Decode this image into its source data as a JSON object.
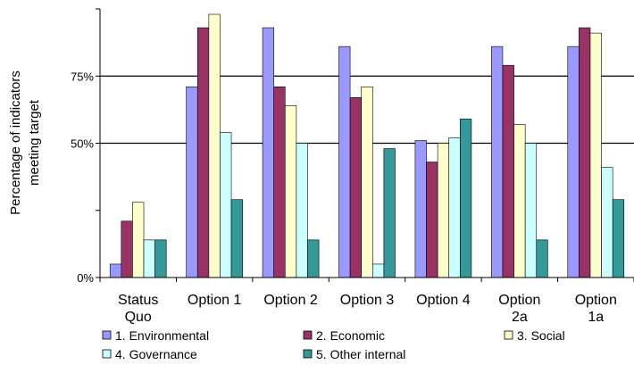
{
  "chart_data": {
    "type": "bar",
    "title": "",
    "xlabel": "",
    "ylabel_lines": [
      "Percentage of indicators",
      "meeting target"
    ],
    "ylim": [
      0,
      100
    ],
    "yticks": [
      {
        "value": 0,
        "label": "0%"
      },
      {
        "value": 50,
        "label": "50%"
      },
      {
        "value": 75,
        "label": "75%"
      }
    ],
    "gridlines": [
      50,
      75
    ],
    "categories": [
      [
        "Status",
        "Quo"
      ],
      [
        "Option 1"
      ],
      [
        "Option 2"
      ],
      [
        "Option 3"
      ],
      [
        "Option 4"
      ],
      [
        "Option",
        "2a"
      ],
      [
        "Option",
        "1a"
      ]
    ],
    "series": [
      {
        "name": "1. Environmental",
        "color": "#9999ff",
        "values": [
          5,
          71,
          93,
          86,
          51,
          86,
          86
        ]
      },
      {
        "name": "2. Economic",
        "color": "#993366",
        "values": [
          21,
          93,
          71,
          67,
          43,
          79,
          93
        ]
      },
      {
        "name": "3. Social",
        "color": "#ffffcc",
        "values": [
          28,
          98,
          64,
          71,
          50,
          57,
          91
        ]
      },
      {
        "name": "4. Governance",
        "color": "#ccffff",
        "values": [
          14,
          54,
          50,
          5,
          52,
          50,
          41
        ]
      },
      {
        "name": "5. Other internal",
        "color": "#339999",
        "values": [
          14,
          29,
          14,
          48,
          59,
          14,
          29
        ]
      }
    ],
    "legend_position": "bottom"
  }
}
